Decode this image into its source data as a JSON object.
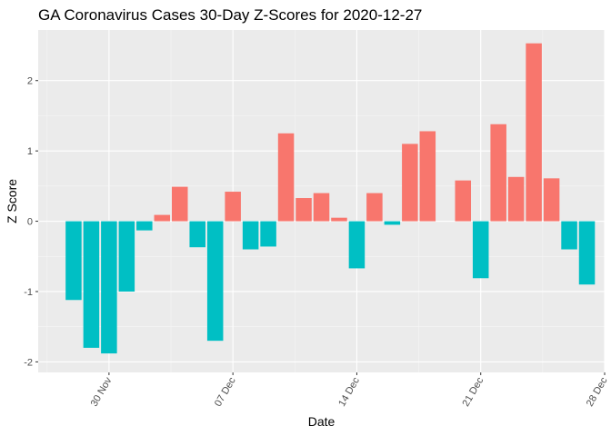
{
  "chart_data": {
    "type": "bar",
    "title": "GA Coronavirus Cases 30-Day Z-Scores for 2020-12-27",
    "xlabel": "Date",
    "ylabel": "Z Score",
    "x_tick_labels": [
      "30 Nov",
      "07 Dec",
      "14 Dec",
      "21 Dec",
      "28 Dec"
    ],
    "y_tick_labels": [
      "-2",
      "-1",
      "0",
      "1",
      "2"
    ],
    "y_ticks": [
      -2,
      -1,
      0,
      1,
      2
    ],
    "ylim": [
      -2.15,
      2.72
    ],
    "xlim": [
      "2020-11-26",
      "2020-12-28"
    ],
    "grid": true,
    "legend": "none",
    "colors": {
      "positive": "#F8766D",
      "negative": "#00BFC4",
      "panel": "#EBEBEB",
      "grid_major": "#FFFFFF",
      "grid_minor": "#F5F5F5"
    },
    "x": [
      "2020-11-28",
      "2020-11-29",
      "2020-11-30",
      "2020-12-01",
      "2020-12-02",
      "2020-12-03",
      "2020-12-04",
      "2020-12-05",
      "2020-12-06",
      "2020-12-07",
      "2020-12-08",
      "2020-12-09",
      "2020-12-10",
      "2020-12-11",
      "2020-12-12",
      "2020-12-13",
      "2020-12-14",
      "2020-12-15",
      "2020-12-16",
      "2020-12-17",
      "2020-12-18",
      "2020-12-19",
      "2020-12-20",
      "2020-12-21",
      "2020-12-22",
      "2020-12-23",
      "2020-12-24",
      "2020-12-25",
      "2020-12-26",
      "2020-12-27"
    ],
    "values": [
      -1.12,
      -1.8,
      -1.88,
      -1.0,
      -0.13,
      0.09,
      0.49,
      -0.37,
      -1.7,
      0.42,
      -0.4,
      -0.36,
      1.25,
      0.33,
      0.4,
      0.05,
      -0.67,
      0.4,
      -0.05,
      1.1,
      1.28,
      0.0,
      0.58,
      -0.81,
      1.38,
      0.63,
      2.53,
      0.61,
      -0.4,
      -0.9
    ]
  }
}
